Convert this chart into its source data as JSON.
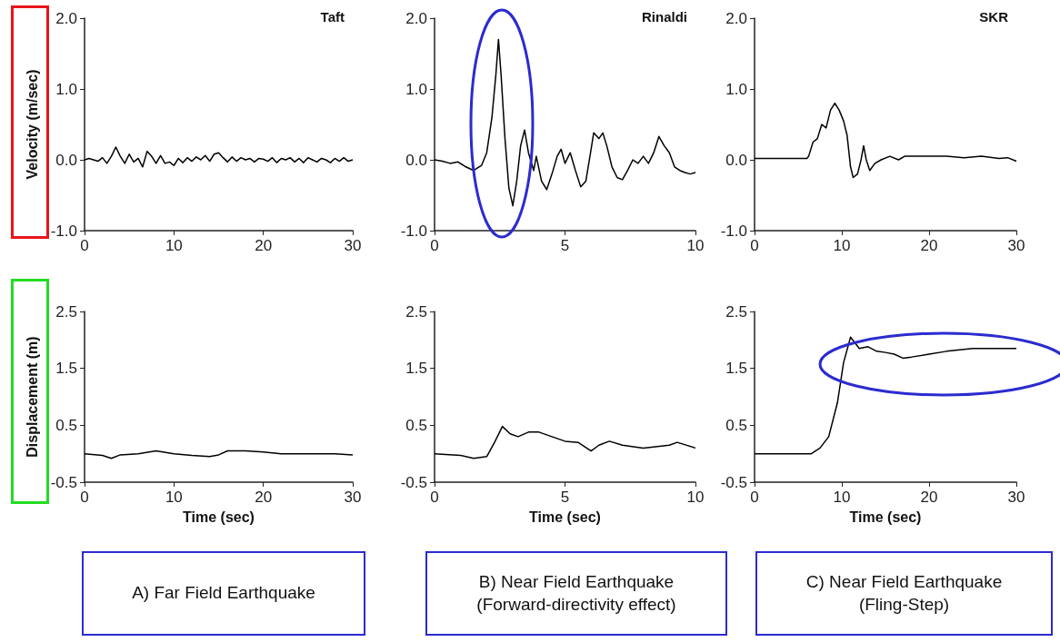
{
  "chart_data": [
    {
      "type": "line",
      "title": "Taft",
      "ylabel": "Velocity (m/sec)",
      "color": "#000000",
      "xlim": [
        0,
        30
      ],
      "ylim": [
        -1,
        2
      ],
      "xticks": [
        0,
        10,
        20,
        30
      ],
      "yticks": [
        {
          "value": -1,
          "label": "-1.0"
        },
        {
          "value": 0,
          "label": "0.0"
        },
        {
          "value": 1,
          "label": "1.0"
        },
        {
          "value": 2,
          "label": "2.0"
        }
      ],
      "x": [
        0,
        0.5,
        1,
        1.5,
        2,
        2.5,
        3,
        3.5,
        4,
        4.5,
        5,
        5.5,
        6,
        6.5,
        7,
        7.5,
        8,
        8.5,
        9,
        9.5,
        10,
        10.5,
        11,
        11.5,
        12,
        12.5,
        13,
        13.5,
        14,
        14.5,
        15,
        15.5,
        16,
        16.5,
        17,
        17.5,
        18,
        18.5,
        19,
        19.5,
        20,
        20.5,
        21,
        21.5,
        22,
        22.5,
        23,
        23.5,
        24,
        24.5,
        25,
        25.5,
        26,
        26.5,
        27,
        27.5,
        28,
        28.5,
        29,
        29.5,
        30
      ],
      "values": [
        0,
        0.02,
        0,
        -0.02,
        0.03,
        -0.05,
        0.05,
        0.18,
        0.05,
        -0.05,
        0.08,
        -0.03,
        0.02,
        -0.1,
        0.12,
        0.05,
        -0.05,
        0.06,
        -0.05,
        -0.03,
        -0.08,
        0.02,
        -0.04,
        0.03,
        -0.02,
        0.04,
        0,
        0.06,
        -0.02,
        0.08,
        0.1,
        0.03,
        -0.03,
        0.04,
        -0.02,
        0.03,
        0,
        0.02,
        -0.03,
        0.02,
        0.01,
        -0.02,
        0.03,
        -0.04,
        0.02,
        0,
        0.03,
        -0.03,
        0.02,
        -0.04,
        0.03,
        0,
        -0.03,
        0.02,
        0,
        -0.04,
        0.02,
        -0.02,
        0.03,
        -0.02,
        0
      ]
    },
    {
      "type": "line",
      "title": "Rinaldi",
      "color": "#000000",
      "xlim": [
        0,
        10
      ],
      "ylim": [
        -1,
        2
      ],
      "xticks": [
        0,
        5,
        10
      ],
      "yticks": [
        {
          "value": -1,
          "label": "-1.0"
        },
        {
          "value": 0,
          "label": "0.0"
        },
        {
          "value": 1,
          "label": "1.0"
        },
        {
          "value": 2,
          "label": "2.0"
        }
      ],
      "x": [
        0,
        0.3,
        0.6,
        0.9,
        1.2,
        1.5,
        1.8,
        2,
        2.2,
        2.35,
        2.45,
        2.55,
        2.7,
        2.85,
        3,
        3.15,
        3.3,
        3.45,
        3.6,
        3.8,
        3.9,
        4.1,
        4.3,
        4.5,
        4.7,
        4.85,
        5,
        5.2,
        5.4,
        5.6,
        5.8,
        6,
        6.1,
        6.3,
        6.45,
        6.6,
        6.8,
        7,
        7.2,
        7.4,
        7.6,
        7.8,
        8,
        8.2,
        8.4,
        8.6,
        8.8,
        9,
        9.2,
        9.4,
        9.6,
        9.8,
        10
      ],
      "values": [
        0,
        -0.02,
        -0.05,
        -0.03,
        -0.1,
        -0.15,
        -0.08,
        0.1,
        0.6,
        1.2,
        1.7,
        1.2,
        0.3,
        -0.4,
        -0.65,
        -0.3,
        0.2,
        0.42,
        0.1,
        -0.15,
        0.05,
        -0.3,
        -0.42,
        -0.2,
        0.05,
        0.15,
        -0.05,
        0.1,
        -0.15,
        -0.38,
        -0.3,
        0.15,
        0.38,
        0.3,
        0.38,
        0.2,
        -0.1,
        -0.25,
        -0.28,
        -0.15,
        0,
        -0.05,
        0.05,
        -0.05,
        0.1,
        0.33,
        0.2,
        0.1,
        -0.1,
        -0.15,
        -0.18,
        -0.2,
        -0.18
      ]
    },
    {
      "type": "line",
      "title": "SKR",
      "color": "#000000",
      "xlim": [
        0,
        30
      ],
      "ylim": [
        -1,
        2
      ],
      "xticks": [
        0,
        10,
        20,
        30
      ],
      "yticks": [
        {
          "value": -1,
          "label": "-1.0"
        },
        {
          "value": 0,
          "label": "0.0"
        },
        {
          "value": 1,
          "label": "1.0"
        },
        {
          "value": 2,
          "label": "2.0"
        }
      ],
      "x": [
        0,
        6,
        6.2,
        6.7,
        7.2,
        7.7,
        8.2,
        8.7,
        9.2,
        9.7,
        10.2,
        10.6,
        11,
        11.3,
        11.8,
        12.2,
        12.5,
        12.8,
        13.2,
        13.8,
        14.5,
        15.5,
        16.5,
        17.2,
        18,
        20,
        22,
        24,
        26,
        28,
        29,
        30
      ],
      "values": [
        0.02,
        0.02,
        0.05,
        0.25,
        0.3,
        0.5,
        0.45,
        0.7,
        0.8,
        0.7,
        0.55,
        0.35,
        -0.1,
        -0.25,
        -0.2,
        0,
        0.2,
        0,
        -0.15,
        -0.05,
        0,
        0.05,
        0,
        0.05,
        0.05,
        0.05,
        0.05,
        0.03,
        0.05,
        0.02,
        0.03,
        -0.02
      ]
    },
    {
      "type": "line",
      "ylabel": "Displacement (m)",
      "xlabel": "Time (sec)",
      "color": "#000000",
      "xlim": [
        0,
        30
      ],
      "ylim": [
        -0.5,
        2.5
      ],
      "xticks": [
        0,
        10,
        20,
        30
      ],
      "yticks": [
        -0.5,
        0.5,
        1.5,
        2.5
      ],
      "annotations": [
        "A) Far Field Earthquake"
      ],
      "x": [
        0,
        2,
        3,
        4,
        6,
        8,
        10,
        12,
        14,
        15,
        16,
        18,
        20,
        22,
        24,
        26,
        28,
        30
      ],
      "values": [
        0,
        -0.03,
        -0.08,
        -0.02,
        0,
        0.05,
        0,
        -0.03,
        -0.05,
        -0.02,
        0.05,
        0.05,
        0.03,
        0,
        0,
        0,
        0,
        -0.02
      ]
    },
    {
      "type": "line",
      "xlabel": "Time (sec)",
      "color": "#000000",
      "xlim": [
        0,
        10
      ],
      "ylim": [
        -0.5,
        2.5
      ],
      "xticks": [
        0,
        5,
        10
      ],
      "yticks": [
        -0.5,
        0.5,
        1.5,
        2.5
      ],
      "annotations": [
        "B) Near Field Earthquake\n(Forward-directivity effect)"
      ],
      "x": [
        0,
        1,
        1.5,
        2,
        2.3,
        2.6,
        2.9,
        3.2,
        3.6,
        4,
        4.5,
        5,
        5.5,
        6,
        6.3,
        6.7,
        7.2,
        8,
        9,
        9.3,
        10
      ],
      "values": [
        0,
        -0.03,
        -0.08,
        -0.05,
        0.2,
        0.48,
        0.35,
        0.3,
        0.38,
        0.38,
        0.3,
        0.22,
        0.2,
        0.05,
        0.15,
        0.22,
        0.15,
        0.1,
        0.15,
        0.2,
        0.1
      ]
    },
    {
      "type": "line",
      "xlabel": "Time (sec)",
      "color": "#000000",
      "xlim": [
        0,
        30
      ],
      "ylim": [
        -0.5,
        2.5
      ],
      "xticks": [
        0,
        10,
        20,
        30
      ],
      "yticks": [
        -0.5,
        0.5,
        1.5,
        2.5
      ],
      "annotations": [
        "C) Near Field Earthquake\n(Fling-Step)"
      ],
      "x": [
        0,
        6.5,
        7.5,
        8.5,
        9.5,
        10.2,
        11,
        11.5,
        12,
        13,
        14,
        15,
        16,
        17,
        18,
        20,
        22,
        25,
        28,
        30
      ],
      "values": [
        0,
        0,
        0.1,
        0.3,
        0.9,
        1.6,
        2.05,
        1.95,
        1.85,
        1.88,
        1.8,
        1.78,
        1.75,
        1.68,
        1.7,
        1.75,
        1.8,
        1.85,
        1.85,
        1.85
      ]
    }
  ]
}
